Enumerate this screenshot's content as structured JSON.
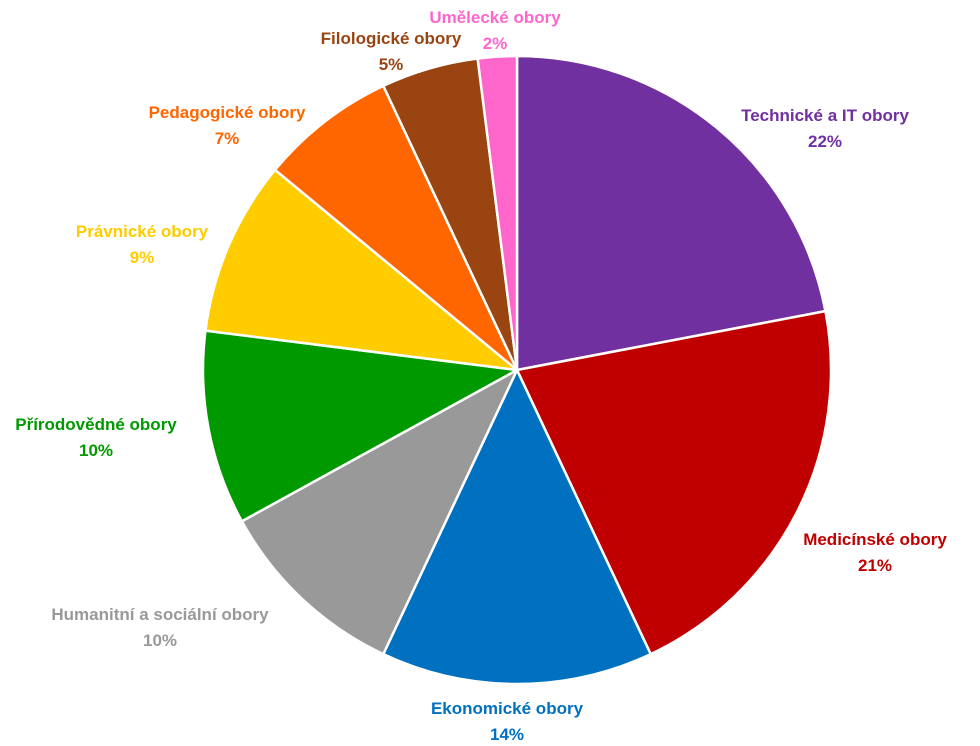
{
  "chart_data": {
    "type": "pie",
    "title": "",
    "start_angle_deg": 0,
    "direction": "clockwise",
    "slices": [
      {
        "label": "Technické a IT obory",
        "value": 22,
        "value_label": "22%",
        "color": "#7030A0"
      },
      {
        "label": "Medicínské obory",
        "value": 21,
        "value_label": "21%",
        "color": "#C00000"
      },
      {
        "label": "Ekonomické obory",
        "value": 14,
        "value_label": "14%",
        "color": "#0070C0"
      },
      {
        "label": "Humanitní a sociální obory",
        "value": 10,
        "value_label": "10%",
        "color": "#999999"
      },
      {
        "label": "Přírodovědné obory",
        "value": 10,
        "value_label": "10%",
        "color": "#009900"
      },
      {
        "label": "Právnické obory",
        "value": 9,
        "value_label": "9%",
        "color": "#FFCC00"
      },
      {
        "label": "Pedagogické obory",
        "value": 7,
        "value_label": "7%",
        "color": "#FF6600"
      },
      {
        "label": "Filologické obory",
        "value": 5,
        "value_label": "5%",
        "color": "#994411"
      },
      {
        "label": "Umělecké obory",
        "value": 2,
        "value_label": "2%",
        "color": "#FF66CC"
      }
    ],
    "legend": "none",
    "data_labels": "outside"
  }
}
